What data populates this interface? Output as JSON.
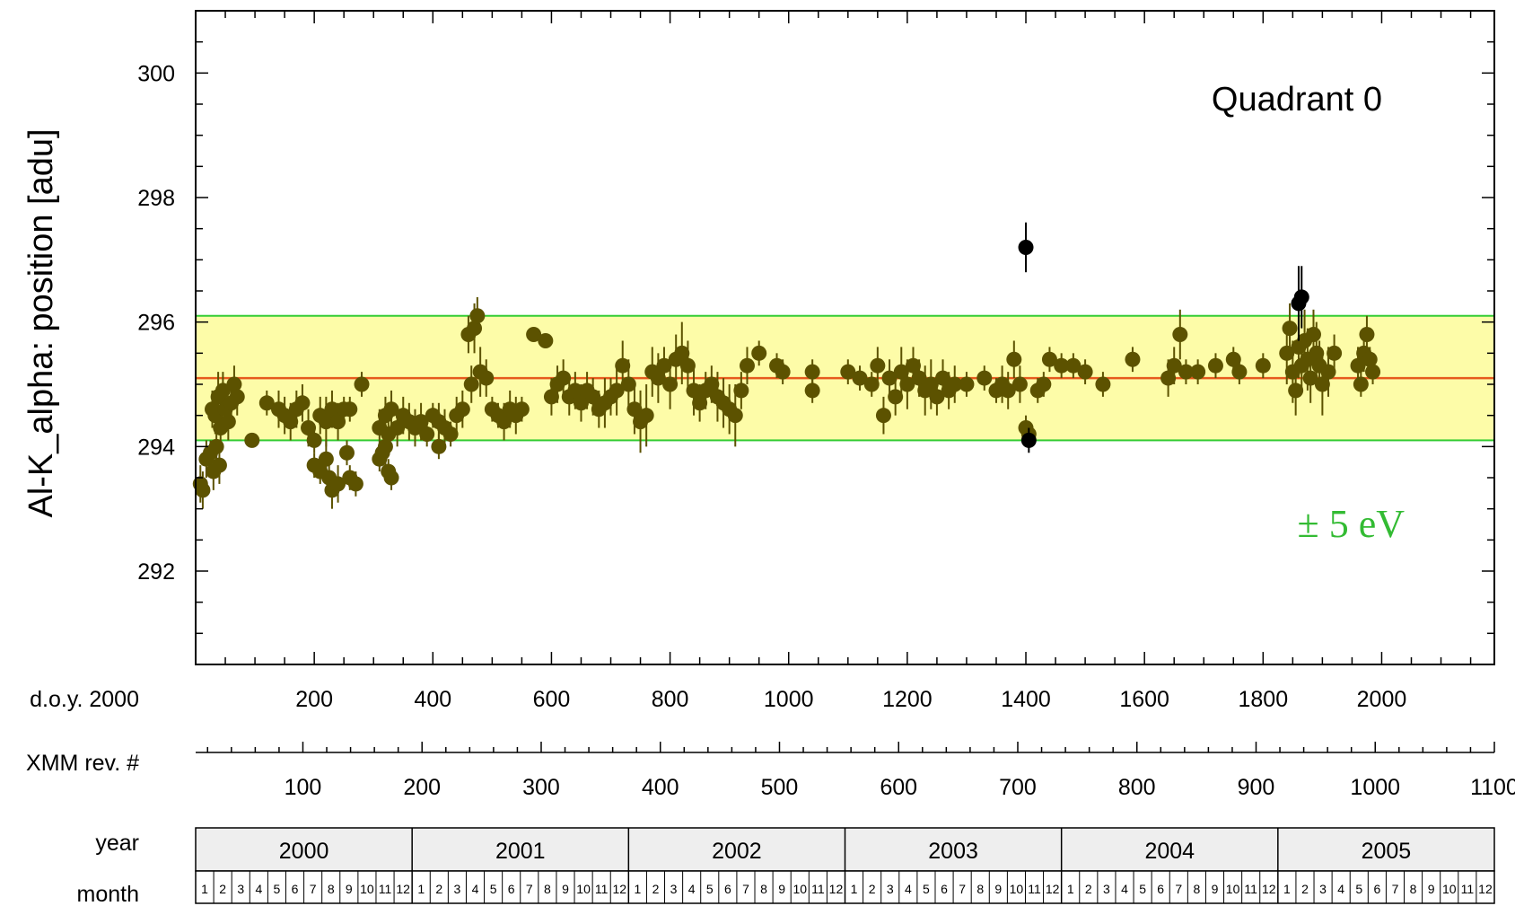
{
  "chart_data": {
    "type": "scatter",
    "ylabel": "Al-K_alpha:  position  [adu]",
    "annotation": "Quadrant 0",
    "band_label": "± 5 eV",
    "ylim": [
      290.5,
      301
    ],
    "xlim": [
      0,
      2190
    ],
    "y_ticks": [
      292,
      294,
      296,
      298,
      300
    ],
    "x_ticks": [
      200,
      400,
      600,
      800,
      1000,
      1200,
      1400,
      1600,
      1800,
      2000
    ],
    "x_row_label": "d.o.y. 2000",
    "rev_row_label": "XMM rev. #",
    "rev_ticks": [
      100,
      200,
      300,
      400,
      500,
      600,
      700,
      800,
      900,
      1000,
      1100
    ],
    "rev_range": [
      10,
      1100
    ],
    "year_row_label": "year",
    "month_row_label": "month",
    "years": [
      "2000",
      "2001",
      "2002",
      "2003",
      "2004",
      "2005"
    ],
    "months": [
      "1",
      "2",
      "3",
      "4",
      "5",
      "6",
      "7",
      "8",
      "9",
      "10",
      "11",
      "12"
    ],
    "reference_line": 295.1,
    "band": [
      294.1,
      296.1
    ],
    "colors": {
      "band_fill": "#fdfca8",
      "band_edge": "#33cc33",
      "reference_line": "#e65a1e",
      "points": "#5c5200",
      "points_dark": "#000000",
      "band_label": "#33bb33",
      "calendar_fill": "#eeeeee"
    },
    "series": [
      {
        "name": "",
        "points": [
          [
            8,
            293.4,
            0.3
          ],
          [
            12,
            293.3,
            0.3
          ],
          [
            18,
            293.8,
            0.3
          ],
          [
            25,
            293.9,
            0.2
          ],
          [
            30,
            293.6,
            0.3
          ],
          [
            35,
            294.0,
            0.2
          ],
          [
            40,
            293.7,
            0.3
          ],
          [
            28,
            294.6,
            0.3
          ],
          [
            33,
            294.5,
            0.3
          ],
          [
            38,
            294.8,
            0.4
          ],
          [
            42,
            294.3,
            0.4
          ],
          [
            46,
            294.9,
            0.3
          ],
          [
            50,
            294.6,
            0.3
          ],
          [
            55,
            294.4,
            0.3
          ],
          [
            60,
            294.7,
            0.3
          ],
          [
            65,
            295.0,
            0.3
          ],
          [
            70,
            294.8,
            0.3
          ],
          [
            95,
            294.1,
            0.1
          ],
          [
            120,
            294.7,
            0.2
          ],
          [
            140,
            294.6,
            0.3
          ],
          [
            150,
            294.5,
            0.3
          ],
          [
            160,
            294.4,
            0.3
          ],
          [
            170,
            294.6,
            0.3
          ],
          [
            180,
            294.7,
            0.3
          ],
          [
            190,
            294.3,
            0.3
          ],
          [
            200,
            294.1,
            0.2
          ],
          [
            210,
            294.5,
            0.3
          ],
          [
            220,
            294.4,
            0.4
          ],
          [
            230,
            294.6,
            0.3
          ],
          [
            240,
            294.4,
            0.3
          ],
          [
            250,
            294.6,
            0.2
          ],
          [
            260,
            294.6,
            0.2
          ],
          [
            200,
            293.7,
            0.2
          ],
          [
            210,
            293.6,
            0.2
          ],
          [
            220,
            293.8,
            0.3
          ],
          [
            225,
            293.5,
            0.3
          ],
          [
            230,
            293.3,
            0.3
          ],
          [
            240,
            293.4,
            0.3
          ],
          [
            255,
            293.9,
            0.2
          ],
          [
            260,
            293.5,
            0.2
          ],
          [
            270,
            293.4,
            0.2
          ],
          [
            280,
            295.0,
            0.2
          ],
          [
            310,
            294.3,
            0.3
          ],
          [
            320,
            294.5,
            0.3
          ],
          [
            325,
            294.2,
            0.3
          ],
          [
            330,
            294.6,
            0.3
          ],
          [
            340,
            294.3,
            0.3
          ],
          [
            350,
            294.5,
            0.3
          ],
          [
            360,
            294.4,
            0.3
          ],
          [
            310,
            293.8,
            0.2
          ],
          [
            315,
            293.9,
            0.2
          ],
          [
            320,
            294.0,
            0.3
          ],
          [
            325,
            293.6,
            0.2
          ],
          [
            330,
            293.5,
            0.2
          ],
          [
            370,
            294.3,
            0.3
          ],
          [
            380,
            294.4,
            0.3
          ],
          [
            390,
            294.2,
            0.2
          ],
          [
            400,
            294.5,
            0.2
          ],
          [
            410,
            294.4,
            0.3
          ],
          [
            420,
            294.3,
            0.3
          ],
          [
            430,
            294.2,
            0.2
          ],
          [
            440,
            294.5,
            0.3
          ],
          [
            410,
            294.0,
            0.2
          ],
          [
            450,
            294.6,
            0.3
          ],
          [
            460,
            295.8,
            0.3
          ],
          [
            465,
            295.0,
            0.3
          ],
          [
            470,
            295.9,
            0.4
          ],
          [
            475,
            296.1,
            0.3
          ],
          [
            480,
            295.2,
            0.4
          ],
          [
            490,
            295.1,
            0.3
          ],
          [
            500,
            294.6,
            0.2
          ],
          [
            510,
            294.5,
            0.2
          ],
          [
            520,
            294.4,
            0.3
          ],
          [
            530,
            294.6,
            0.3
          ],
          [
            540,
            294.5,
            0.3
          ],
          [
            550,
            294.6,
            0.2
          ],
          [
            570,
            295.8,
            0.1
          ],
          [
            590,
            295.7,
            0.1
          ],
          [
            600,
            294.8,
            0.3
          ],
          [
            610,
            295.0,
            0.3
          ],
          [
            620,
            295.1,
            0.3
          ],
          [
            630,
            294.8,
            0.3
          ],
          [
            640,
            294.9,
            0.3
          ],
          [
            650,
            294.7,
            0.3
          ],
          [
            660,
            294.9,
            0.3
          ],
          [
            670,
            294.8,
            0.3
          ],
          [
            680,
            294.6,
            0.3
          ],
          [
            690,
            294.7,
            0.4
          ],
          [
            700,
            294.8,
            0.3
          ],
          [
            710,
            294.9,
            0.4
          ],
          [
            720,
            295.3,
            0.4
          ],
          [
            730,
            295.0,
            0.4
          ],
          [
            740,
            294.6,
            0.4
          ],
          [
            750,
            294.4,
            0.5
          ],
          [
            760,
            294.5,
            0.5
          ],
          [
            770,
            295.2,
            0.4
          ],
          [
            780,
            295.1,
            0.4
          ],
          [
            790,
            295.3,
            0.3
          ],
          [
            800,
            295.0,
            0.4
          ],
          [
            810,
            295.4,
            0.4
          ],
          [
            820,
            295.5,
            0.5
          ],
          [
            830,
            295.3,
            0.4
          ],
          [
            840,
            294.9,
            0.4
          ],
          [
            850,
            294.7,
            0.3
          ],
          [
            860,
            294.9,
            0.3
          ],
          [
            870,
            295.0,
            0.3
          ],
          [
            880,
            294.8,
            0.4
          ],
          [
            890,
            294.7,
            0.4
          ],
          [
            900,
            294.6,
            0.4
          ],
          [
            910,
            294.5,
            0.5
          ],
          [
            920,
            294.9,
            0.3
          ],
          [
            930,
            295.3,
            0.3
          ],
          [
            950,
            295.5,
            0.2
          ],
          [
            980,
            295.3,
            0.2
          ],
          [
            990,
            295.2,
            0.2
          ],
          [
            1040,
            295.2,
            0.2
          ],
          [
            1040,
            294.9,
            0.2
          ],
          [
            1100,
            295.2,
            0.2
          ],
          [
            1120,
            295.1,
            0.2
          ],
          [
            1140,
            295.0,
            0.2
          ],
          [
            1150,
            295.3,
            0.3
          ],
          [
            1160,
            294.5,
            0.3
          ],
          [
            1170,
            295.1,
            0.3
          ],
          [
            1180,
            294.8,
            0.3
          ],
          [
            1190,
            295.2,
            0.4
          ],
          [
            1200,
            295.0,
            0.4
          ],
          [
            1210,
            295.3,
            0.3
          ],
          [
            1220,
            295.1,
            0.3
          ],
          [
            1230,
            294.9,
            0.4
          ],
          [
            1240,
            295.0,
            0.4
          ],
          [
            1250,
            294.8,
            0.3
          ],
          [
            1260,
            295.1,
            0.3
          ],
          [
            1270,
            294.9,
            0.3
          ],
          [
            1280,
            295.0,
            0.3
          ],
          [
            1300,
            295.0,
            0.2
          ],
          [
            1330,
            295.1,
            0.2
          ],
          [
            1350,
            294.9,
            0.2
          ],
          [
            1360,
            295.0,
            0.3
          ],
          [
            1370,
            294.9,
            0.3
          ],
          [
            1380,
            295.4,
            0.3
          ],
          [
            1390,
            295.0,
            0.3
          ],
          [
            1400,
            294.3,
            0.2
          ],
          [
            1405,
            294.2,
            0.2
          ],
          [
            1420,
            294.9,
            0.2
          ],
          [
            1430,
            295.0,
            0.2
          ],
          [
            1440,
            295.4,
            0.2
          ],
          [
            1460,
            295.3,
            0.2
          ],
          [
            1480,
            295.3,
            0.2
          ],
          [
            1500,
            295.2,
            0.2
          ],
          [
            1530,
            295.0,
            0.2
          ],
          [
            1580,
            295.4,
            0.2
          ],
          [
            1640,
            295.1,
            0.3
          ],
          [
            1650,
            295.3,
            0.3
          ],
          [
            1660,
            295.8,
            0.4
          ],
          [
            1670,
            295.2,
            0.2
          ],
          [
            1690,
            295.2,
            0.2
          ],
          [
            1720,
            295.3,
            0.2
          ],
          [
            1750,
            295.4,
            0.2
          ],
          [
            1760,
            295.2,
            0.2
          ],
          [
            1800,
            295.3,
            0.2
          ],
          [
            1840,
            295.5,
            0.5
          ],
          [
            1845,
            295.9,
            0.4
          ],
          [
            1850,
            295.2,
            0.5
          ],
          [
            1855,
            294.9,
            0.4
          ],
          [
            1860,
            295.6,
            0.5
          ],
          [
            1865,
            295.3,
            0.4
          ],
          [
            1870,
            295.7,
            0.5
          ],
          [
            1875,
            295.4,
            0.5
          ],
          [
            1880,
            295.1,
            0.4
          ],
          [
            1885,
            295.8,
            0.4
          ],
          [
            1890,
            295.5,
            0.5
          ],
          [
            1895,
            295.3,
            0.4
          ],
          [
            1900,
            295.0,
            0.5
          ],
          [
            1910,
            295.2,
            0.4
          ],
          [
            1920,
            295.5,
            0.3
          ],
          [
            1960,
            295.3,
            0.3
          ],
          [
            1965,
            295.0,
            0.2
          ],
          [
            1970,
            295.5,
            0.3
          ],
          [
            1975,
            295.8,
            0.3
          ],
          [
            1980,
            295.4,
            0.2
          ],
          [
            1985,
            295.2,
            0.2
          ]
        ]
      },
      {
        "name": "",
        "dark": true,
        "points": [
          [
            1400,
            297.2,
            0.4
          ],
          [
            1405,
            294.1,
            0.2
          ],
          [
            1860,
            296.3,
            0.6
          ],
          [
            1865,
            296.4,
            0.5
          ]
        ]
      }
    ]
  }
}
